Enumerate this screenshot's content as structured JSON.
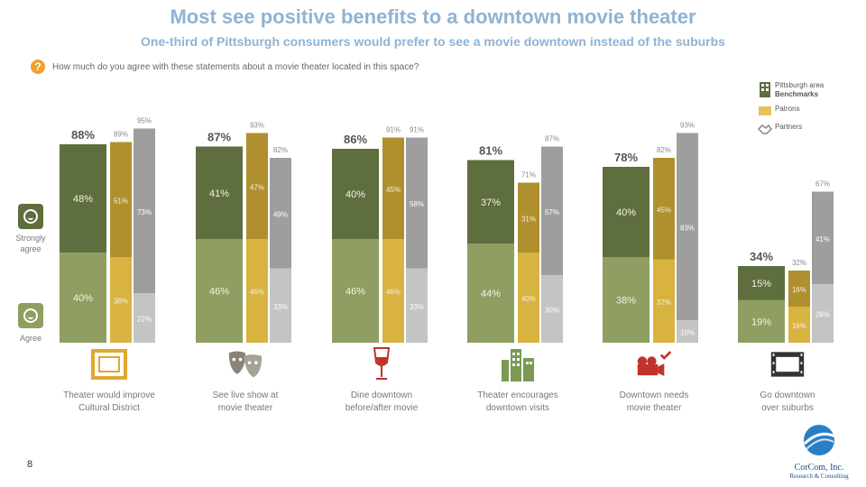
{
  "header": {
    "title": "Most see positive benefits to a downtown movie theater",
    "subtitle": "One-third of Pittsburgh consumers would prefer to see a movie downtown instead of the suburbs",
    "question": "How much do you agree with these statements about a movie theater located in this space?"
  },
  "scale": {
    "strong_label_1": "Strongly",
    "strong_label_2": "agree",
    "agree_label": "Agree"
  },
  "legend": [
    {
      "label_1": "Pittsburgh area",
      "label_2": "Benchmarks",
      "color": "#5e6e3e"
    },
    {
      "label_1": "Patrons",
      "label_2": "",
      "color": "#c8a636"
    },
    {
      "label_1": "Partners",
      "label_2": "",
      "color": "#9e9e9e"
    }
  ],
  "chart_data": {
    "type": "bar",
    "stacked": true,
    "ylim": [
      0,
      100
    ],
    "categories": [
      "Theater would improve Cultural District",
      "See live show at movie theater",
      "Dine downtown before/after movie",
      "Theater encourages downtown visits",
      "Downtown needs movie theater",
      "Go downtown over suburbs"
    ],
    "label_lines": [
      [
        "Theater would improve",
        "Cultural District"
      ],
      [
        "See live show at",
        "movie theater"
      ],
      [
        "Dine downtown",
        "before/after movie"
      ],
      [
        "Theater encourages",
        "downtown visits"
      ],
      [
        "Downtown needs",
        "movie theater"
      ],
      [
        "Go downtown",
        "over suburbs"
      ]
    ],
    "groups": [
      "Pittsburgh area",
      "Patrons",
      "Partners"
    ],
    "segments": [
      "Agree",
      "Strongly agree"
    ],
    "colors": {
      "Pittsburgh area": {
        "agree": "#8e9f61",
        "strong": "#5e6e3e"
      },
      "Patrons": {
        "agree": "#d9b33f",
        "strong": "#b08f2e"
      },
      "Partners": {
        "agree": "#c4c4c4",
        "strong": "#9e9e9e"
      }
    },
    "series": [
      {
        "name": "Pittsburgh area",
        "agree": [
          40,
          46,
          46,
          44,
          38,
          19
        ],
        "strong": [
          48,
          41,
          40,
          37,
          40,
          15
        ],
        "total": [
          88,
          87,
          86,
          81,
          78,
          34
        ]
      },
      {
        "name": "Patrons",
        "agree": [
          38,
          46,
          46,
          40,
          37,
          16
        ],
        "strong": [
          51,
          47,
          45,
          31,
          45,
          16
        ],
        "total": [
          89,
          93,
          91,
          71,
          82,
          32
        ]
      },
      {
        "name": "Partners",
        "agree": [
          22,
          33,
          33,
          30,
          10,
          26
        ],
        "strong": [
          73,
          49,
          58,
          57,
          83,
          41
        ],
        "total": [
          95,
          82,
          91,
          87,
          93,
          67
        ]
      }
    ]
  },
  "footer": {
    "page_number": "8",
    "company": "CorCom, Inc.",
    "tagline": "Research & Consulting"
  }
}
